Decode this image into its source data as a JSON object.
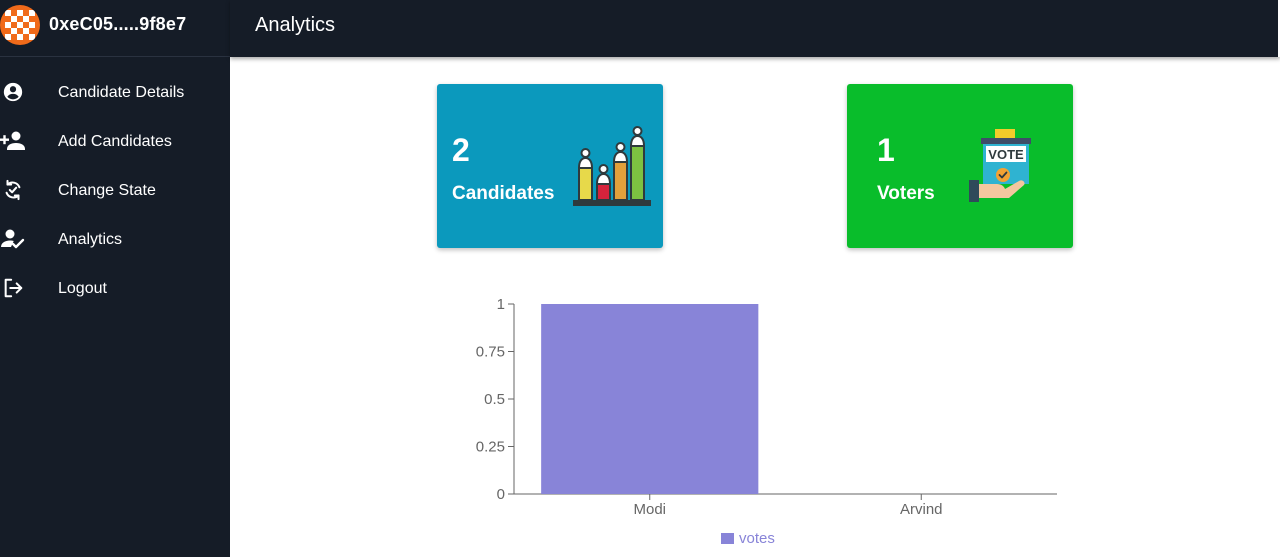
{
  "sidebar": {
    "account": "0xeC05.....9f8e7",
    "items": [
      {
        "label": "Candidate Details",
        "icon": "account-circle-icon"
      },
      {
        "label": "Add Candidates",
        "icon": "person-add-icon"
      },
      {
        "label": "Change State",
        "icon": "change-state-icon"
      },
      {
        "label": "Analytics",
        "icon": "person-check-icon"
      },
      {
        "label": "Logout",
        "icon": "logout-icon"
      }
    ]
  },
  "header": {
    "title": "Analytics"
  },
  "cards": {
    "candidates": {
      "count": "2",
      "label": "Candidates",
      "color": "#0b99bd",
      "icon": "podium-chart-icon"
    },
    "voters": {
      "count": "1",
      "label": "Voters",
      "color": "#09bd2b",
      "icon": "ballot-box-icon"
    }
  },
  "colors": {
    "sidebar_bg": "#151c27",
    "bar": "#8884d8"
  },
  "chart_data": {
    "type": "bar",
    "categories": [
      "Modi",
      "Arvind"
    ],
    "series": [
      {
        "name": "votes",
        "values": [
          1,
          0
        ],
        "color": "#8884d8"
      }
    ],
    "ylim": [
      0,
      1
    ],
    "yticks": [
      "0",
      "0.25",
      "0.5",
      "0.75",
      "1"
    ],
    "legend": "bottom"
  }
}
